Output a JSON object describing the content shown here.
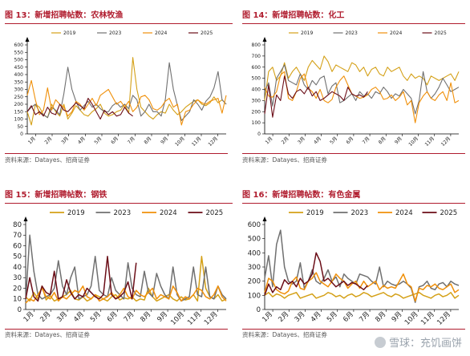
{
  "panels": [
    {
      "title": "图 13：新增招聘帖数：农林牧渔",
      "source": "资料来源：Datayes、招商证券",
      "chart_data": {
        "type": "line",
        "ylim": [
          0,
          600
        ],
        "yticks": [
          0,
          50,
          100,
          150,
          200,
          250,
          300,
          350,
          400,
          450,
          500,
          550,
          600
        ],
        "xlabels": [
          "1月",
          "2月",
          "3月",
          "4月",
          "5月",
          "6月",
          "7月",
          "8月",
          "9月",
          "10月",
          "11月",
          "12月"
        ],
        "legend_position": "top",
        "series": [
          {
            "name": "2019",
            "color": "#d4a017",
            "values": [
              150,
              60,
              200,
              180,
              130,
              110,
              200,
              150,
              120,
              200,
              100,
              140,
              190,
              160,
              130,
              120,
              150,
              170,
              200,
              140,
              120,
              130,
              150,
              160,
              200,
              140,
              515,
              300,
              180,
              150,
              120,
              100,
              130,
              150,
              140,
              200,
              160,
              130,
              150,
              180,
              200,
              220,
              230,
              200,
              190,
              210,
              250,
              210,
              230,
              200
            ]
          },
          {
            "name": "2023",
            "color": "#707070",
            "values": [
              150,
              180,
              200,
              150,
              130,
              110,
              180,
              160,
              130,
              270,
              450,
              300,
              220,
              160,
              190,
              220,
              180,
              200,
              170,
              150,
              150,
              190,
              210,
              180,
              200,
              170,
              260,
              230,
              120,
              150,
              200,
              150,
              150,
              120,
              230,
              480,
              300,
              190,
              90,
              120,
              150,
              230,
              200,
              160,
              220,
              250,
              310,
              420,
              230,
              200
            ]
          },
          {
            "name": "2024",
            "color": "#f0900a",
            "values": [
              260,
              360,
              230,
              130,
              160,
              310,
              160,
              230,
              200,
              180,
              120,
              150,
              220,
              200,
              160,
              200,
              240,
              190,
              260,
              280,
              300,
              250,
              200,
              220,
              180,
              220,
              150,
              180,
              250,
              260,
              230,
              170,
              160,
              180,
              220,
              240,
              180,
              200,
              60,
              150,
              160,
              200,
              230,
              210,
              200,
              220,
              230,
              240,
              140,
              260
            ]
          },
          {
            "name": "2025",
            "color": "#6b0d17",
            "values": [
              150,
              190,
              130,
              150,
              120,
              180,
              140,
              130,
              200,
              160,
              150,
              180,
              210,
              190,
              170,
              240,
              200,
              150,
              100,
              160,
              130,
              150,
              120,
              130,
              180,
              140,
              120
            ]
          }
        ]
      }
    },
    {
      "title": "图 14：新增招聘帖数：化工",
      "source": "资料来源：Datayes、招商证券",
      "chart_data": {
        "type": "line",
        "ylim": [
          0,
          800
        ],
        "yticks": [
          0,
          100,
          200,
          300,
          400,
          500,
          600,
          700,
          800
        ],
        "xlabels": [
          "1月",
          "2月",
          "3月",
          "4月",
          "5月",
          "6月",
          "7月",
          "8月",
          "9月",
          "10月",
          "11月",
          "12月"
        ],
        "legend_position": "top",
        "series": [
          {
            "name": "2019",
            "color": "#d4a017",
            "values": [
              300,
              560,
              600,
              480,
              520,
              640,
              500,
              560,
              600,
              540,
              480,
              600,
              660,
              620,
              580,
              700,
              650,
              560,
              620,
              600,
              580,
              560,
              640,
              620,
              560,
              600,
              520,
              580,
              600,
              540,
              520,
              600,
              560,
              580,
              600,
              520,
              480,
              540,
              500,
              520,
              500,
              440,
              520,
              500,
              480,
              500,
              520,
              540,
              480,
              560
            ]
          },
          {
            "name": "2023",
            "color": "#707070",
            "values": [
              380,
              460,
              250,
              500,
              560,
              620,
              480,
              460,
              440,
              540,
              440,
              400,
              480,
              440,
              500,
              520,
              360,
              430,
              460,
              280,
              300,
              330,
              360,
              300,
              380,
              340,
              360,
              320,
              380,
              360,
              420,
              380,
              320,
              360,
              340,
              400,
              360,
              320,
              180,
              300,
              560,
              380,
              320,
              360,
              420,
              500,
              440,
              380,
              400,
              420
            ]
          },
          {
            "name": "2024",
            "color": "#f0900a",
            "values": [
              420,
              340,
              330,
              380,
              530,
              560,
              320,
              300,
              380,
              500,
              540,
              410,
              380,
              320,
              400,
              300,
              280,
              310,
              420,
              480,
              520,
              440,
              360,
              340,
              320,
              330,
              350,
              400,
              420,
              380,
              310,
              320,
              350,
              300,
              330,
              380,
              260,
              300,
              100,
              280,
              340,
              380,
              320,
              300,
              350,
              380,
              300,
              460,
              280,
              300
            ]
          },
          {
            "name": "2025",
            "color": "#6b0d17",
            "values": [
              180,
              440,
              150,
              350,
              300,
              520,
              360,
              320,
              380,
              400,
              360,
              420,
              340,
              380,
              300,
              320,
              350,
              380,
              360,
              340,
              300,
              420,
              360,
              340,
              350,
              330,
              380
            ]
          }
        ]
      }
    },
    {
      "title": "图 15：新增招聘帖数：钢铁",
      "source": "资料来源：Datayes、招商证券",
      "chart_data": {
        "type": "line",
        "ylim": [
          0,
          80
        ],
        "yticks": [
          0,
          10,
          20,
          30,
          40,
          50,
          60,
          70,
          80
        ],
        "xlabels": [
          "1月",
          "2月",
          "3月",
          "4月",
          "5月",
          "6月",
          "7月",
          "8月",
          "9月",
          "10月",
          "11月",
          "12月"
        ],
        "legend_position": "top",
        "series": [
          {
            "name": "2019",
            "color": "#d4a017",
            "values": [
              12,
              8,
              16,
              10,
              22,
              9,
              13,
              8,
              10,
              12,
              14,
              18,
              10,
              9,
              12,
              8,
              10,
              14,
              12,
              10,
              8,
              12,
              14,
              9,
              11,
              10,
              12,
              8,
              10,
              9,
              20,
              12,
              8,
              10,
              12,
              14,
              10,
              8,
              12,
              9,
              10,
              14,
              8,
              50,
              20,
              12,
              10,
              14,
              8,
              10
            ]
          },
          {
            "name": "2023",
            "color": "#707070",
            "values": [
              8,
              70,
              36,
              14,
              10,
              12,
              14,
              20,
              46,
              22,
              14,
              30,
              40,
              10,
              12,
              14,
              22,
              50,
              18,
              14,
              12,
              30,
              18,
              14,
              10,
              44,
              20,
              14,
              12,
              36,
              16,
              12,
              34,
              22,
              14,
              10,
              40,
              14,
              8,
              10,
              12,
              40,
              14,
              12,
              40,
              12,
              10,
              22,
              14,
              10
            ]
          },
          {
            "name": "2024",
            "color": "#f0900a",
            "values": [
              6,
              10,
              8,
              14,
              20,
              12,
              10,
              16,
              8,
              12,
              10,
              14,
              18,
              16,
              22,
              12,
              10,
              14,
              8,
              10,
              12,
              16,
              10,
              14,
              20,
              12,
              10,
              18,
              14,
              12,
              16,
              20,
              10,
              14,
              12,
              10,
              22,
              16,
              8,
              12,
              10,
              14,
              20,
              18,
              12,
              10,
              14,
              22,
              12,
              8
            ]
          },
          {
            "name": "2025",
            "color": "#6b0d17",
            "values": [
              10,
              30,
              12,
              8,
              22,
              16,
              14,
              36,
              10,
              12,
              28,
              16,
              10,
              14,
              12,
              20,
              16,
              12,
              10,
              14,
              50,
              14,
              10,
              12,
              16,
              26,
              10,
              44
            ]
          }
        ]
      }
    },
    {
      "title": "图 16：新增招聘帖数：有色金属",
      "source": "资料来源：Datayes、招商证券",
      "chart_data": {
        "type": "line",
        "ylim": [
          0,
          600
        ],
        "yticks": [
          0,
          100,
          200,
          300,
          400,
          500,
          600
        ],
        "xlabels": [
          "1月",
          "2月",
          "3月",
          "4月",
          "5月",
          "6月",
          "7月",
          "8月",
          "9月",
          "10月",
          "11月",
          "12月"
        ],
        "legend_position": "top",
        "series": [
          {
            "name": "2019",
            "color": "#d4a017",
            "values": [
              100,
              120,
              90,
              110,
              100,
              80,
              100,
              110,
              120,
              80,
              90,
              100,
              110,
              80,
              90,
              100,
              120,
              110,
              90,
              100,
              80,
              100,
              110,
              90,
              100,
              120,
              110,
              90,
              100,
              110,
              120,
              100,
              90,
              110,
              100,
              80,
              90,
              100,
              110,
              120,
              100,
              90,
              80,
              100,
              110,
              90,
              100,
              120,
              80,
              100
            ]
          },
          {
            "name": "2023",
            "color": "#707070",
            "values": [
              220,
              380,
              160,
              460,
              560,
              300,
              200,
              180,
              200,
              330,
              150,
              200,
              280,
              200,
              180,
              220,
              280,
              200,
              230,
              160,
              250,
              220,
              200,
              180,
              250,
              240,
              230,
              200,
              180,
              300,
              160,
              200,
              180,
              170,
              180,
              200,
              180,
              150,
              50,
              160,
              170,
              200,
              150,
              140,
              180,
              190,
              160,
              200,
              180,
              170
            ]
          },
          {
            "name": "2024",
            "color": "#f0900a",
            "values": [
              120,
              220,
              200,
              140,
              120,
              110,
              130,
              200,
              230,
              150,
              140,
              200,
              220,
              260,
              200,
              180,
              160,
              200,
              250,
              220,
              200,
              150,
              180,
              200,
              150,
              200,
              160,
              180,
              200,
              140,
              170,
              150,
              160,
              150,
              200,
              250,
              180,
              160,
              60,
              150,
              140,
              170,
              160,
              180,
              150,
              140,
              160,
              180,
              120,
              140
            ]
          },
          {
            "name": "2025",
            "color": "#6b0d17",
            "values": [
              100,
              180,
              120,
              160,
              140,
              210,
              180,
              200,
              160,
              220,
              180,
              200,
              250,
              400,
              340,
              200,
              220,
              190,
              160,
              180,
              200,
              170,
              190,
              180,
              160,
              140,
              170
            ]
          }
        ]
      }
    }
  ],
  "watermark": "雪球：充饥画饼"
}
